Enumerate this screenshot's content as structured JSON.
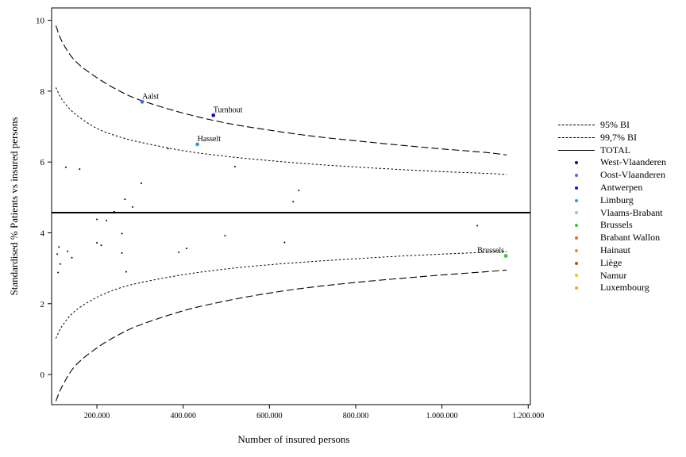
{
  "chart_data": {
    "type": "scatter",
    "title": "",
    "xlabel": "Number of insured persons",
    "ylabel": "Standardised % Patients vs insured persons",
    "xlim": [
      95000,
      1205000
    ],
    "ylim": [
      -0.85,
      10.35
    ],
    "x_ticks": [
      200000,
      400000,
      600000,
      800000,
      1000000,
      1200000
    ],
    "x_tick_labels": [
      "200.000",
      "400.000",
      "600.000",
      "800.000",
      "1.000.000",
      "1.200.000"
    ],
    "y_ticks": [
      0,
      2,
      4,
      6,
      8,
      10
    ],
    "y_tick_labels": [
      "0",
      "2",
      "4",
      "6",
      "8",
      "10"
    ],
    "grid": false,
    "legend_position": "right",
    "total": 4.57,
    "funnel_95_upper": [
      [
        105000,
        8.1
      ],
      [
        120000,
        7.75
      ],
      [
        150000,
        7.35
      ],
      [
        200000,
        6.95
      ],
      [
        250000,
        6.72
      ],
      [
        300000,
        6.56
      ],
      [
        400000,
        6.32
      ],
      [
        500000,
        6.16
      ],
      [
        600000,
        6.04
      ],
      [
        700000,
        5.94
      ],
      [
        800000,
        5.86
      ],
      [
        900000,
        5.79
      ],
      [
        1000000,
        5.73
      ],
      [
        1100000,
        5.68
      ],
      [
        1150000,
        5.65
      ]
    ],
    "funnel_95_lower": [
      [
        105000,
        1.02
      ],
      [
        120000,
        1.38
      ],
      [
        150000,
        1.8
      ],
      [
        200000,
        2.18
      ],
      [
        250000,
        2.43
      ],
      [
        300000,
        2.59
      ],
      [
        400000,
        2.82
      ],
      [
        500000,
        2.98
      ],
      [
        600000,
        3.1
      ],
      [
        700000,
        3.19
      ],
      [
        800000,
        3.27
      ],
      [
        900000,
        3.34
      ],
      [
        1000000,
        3.4
      ],
      [
        1100000,
        3.45
      ],
      [
        1150000,
        3.47
      ]
    ],
    "funnel_997_upper": [
      [
        105000,
        9.85
      ],
      [
        120000,
        9.38
      ],
      [
        150000,
        8.85
      ],
      [
        200000,
        8.38
      ],
      [
        250000,
        8.02
      ],
      [
        300000,
        7.75
      ],
      [
        400000,
        7.38
      ],
      [
        500000,
        7.1
      ],
      [
        600000,
        6.9
      ],
      [
        700000,
        6.73
      ],
      [
        800000,
        6.6
      ],
      [
        900000,
        6.48
      ],
      [
        1000000,
        6.37
      ],
      [
        1100000,
        6.27
      ],
      [
        1150000,
        6.2
      ]
    ],
    "funnel_997_lower": [
      [
        105000,
        -0.75
      ],
      [
        120000,
        -0.32
      ],
      [
        150000,
        0.25
      ],
      [
        200000,
        0.75
      ],
      [
        250000,
        1.12
      ],
      [
        300000,
        1.4
      ],
      [
        400000,
        1.8
      ],
      [
        500000,
        2.08
      ],
      [
        600000,
        2.3
      ],
      [
        700000,
        2.47
      ],
      [
        800000,
        2.6
      ],
      [
        900000,
        2.71
      ],
      [
        1000000,
        2.81
      ],
      [
        1100000,
        2.9
      ],
      [
        1150000,
        2.95
      ]
    ],
    "labeled_points": [
      {
        "label": "Aalst",
        "x": 305000,
        "y": 7.7,
        "color": "#4a6fd8"
      },
      {
        "label": "Turnhout",
        "x": 470000,
        "y": 7.32,
        "color": "#1010c8"
      },
      {
        "label": "Hasselt",
        "x": 433000,
        "y": 6.5,
        "color": "#2ea0e0"
      },
      {
        "label": "Brussels",
        "x": 1148000,
        "y": 3.35,
        "color": "#33cc33"
      }
    ],
    "points": [
      {
        "x": 128000,
        "y": 5.85
      },
      {
        "x": 160000,
        "y": 5.8
      },
      {
        "x": 303000,
        "y": 5.4
      },
      {
        "x": 365000,
        "y": 6.38
      },
      {
        "x": 265000,
        "y": 4.95
      },
      {
        "x": 283000,
        "y": 4.73
      },
      {
        "x": 240000,
        "y": 4.6
      },
      {
        "x": 520000,
        "y": 5.87
      },
      {
        "x": 668000,
        "y": 5.2
      },
      {
        "x": 655000,
        "y": 4.88
      },
      {
        "x": 200000,
        "y": 4.38
      },
      {
        "x": 222000,
        "y": 4.35
      },
      {
        "x": 258000,
        "y": 3.98
      },
      {
        "x": 200000,
        "y": 3.72
      },
      {
        "x": 210000,
        "y": 3.65
      },
      {
        "x": 112000,
        "y": 3.6
      },
      {
        "x": 108000,
        "y": 3.4
      },
      {
        "x": 132000,
        "y": 3.48
      },
      {
        "x": 142000,
        "y": 3.3
      },
      {
        "x": 115000,
        "y": 3.12
      },
      {
        "x": 110000,
        "y": 2.88
      },
      {
        "x": 258000,
        "y": 3.43
      },
      {
        "x": 268000,
        "y": 2.9
      },
      {
        "x": 390000,
        "y": 3.45
      },
      {
        "x": 408000,
        "y": 3.56
      },
      {
        "x": 497000,
        "y": 3.92
      },
      {
        "x": 635000,
        "y": 3.73
      },
      {
        "x": 1082000,
        "y": 4.2
      }
    ]
  },
  "legend": {
    "items": [
      {
        "label": "95% BI",
        "kind": "line",
        "style": "dot"
      },
      {
        "label": "99,7% BI",
        "kind": "line",
        "style": "dash"
      },
      {
        "label": "TOTAL",
        "kind": "line",
        "style": "solid"
      },
      {
        "label": "West-Vlaanderen",
        "kind": "dot",
        "color": "#0a0a8c"
      },
      {
        "label": "Oost-Vlaanderen",
        "kind": "dot",
        "color": "#4a6fd8"
      },
      {
        "label": "Antwerpen",
        "kind": "dot",
        "color": "#1010c8"
      },
      {
        "label": "Limburg",
        "kind": "dot",
        "color": "#2ea0e0"
      },
      {
        "label": "Vlaams-Brabant",
        "kind": "dot",
        "color": "#7ec8f0"
      },
      {
        "label": "Brussels",
        "kind": "dot",
        "color": "#33cc33"
      },
      {
        "label": "Brabant Wallon",
        "kind": "dot",
        "color": "#e06a2a"
      },
      {
        "label": "Hainaut",
        "kind": "dot",
        "color": "#f0902a"
      },
      {
        "label": "Liège",
        "kind": "dot",
        "color": "#b0502a"
      },
      {
        "label": "Namur",
        "kind": "dot",
        "color": "#f0c020"
      },
      {
        "label": "Luxembourg",
        "kind": "dot",
        "color": "#f0a040"
      }
    ]
  }
}
